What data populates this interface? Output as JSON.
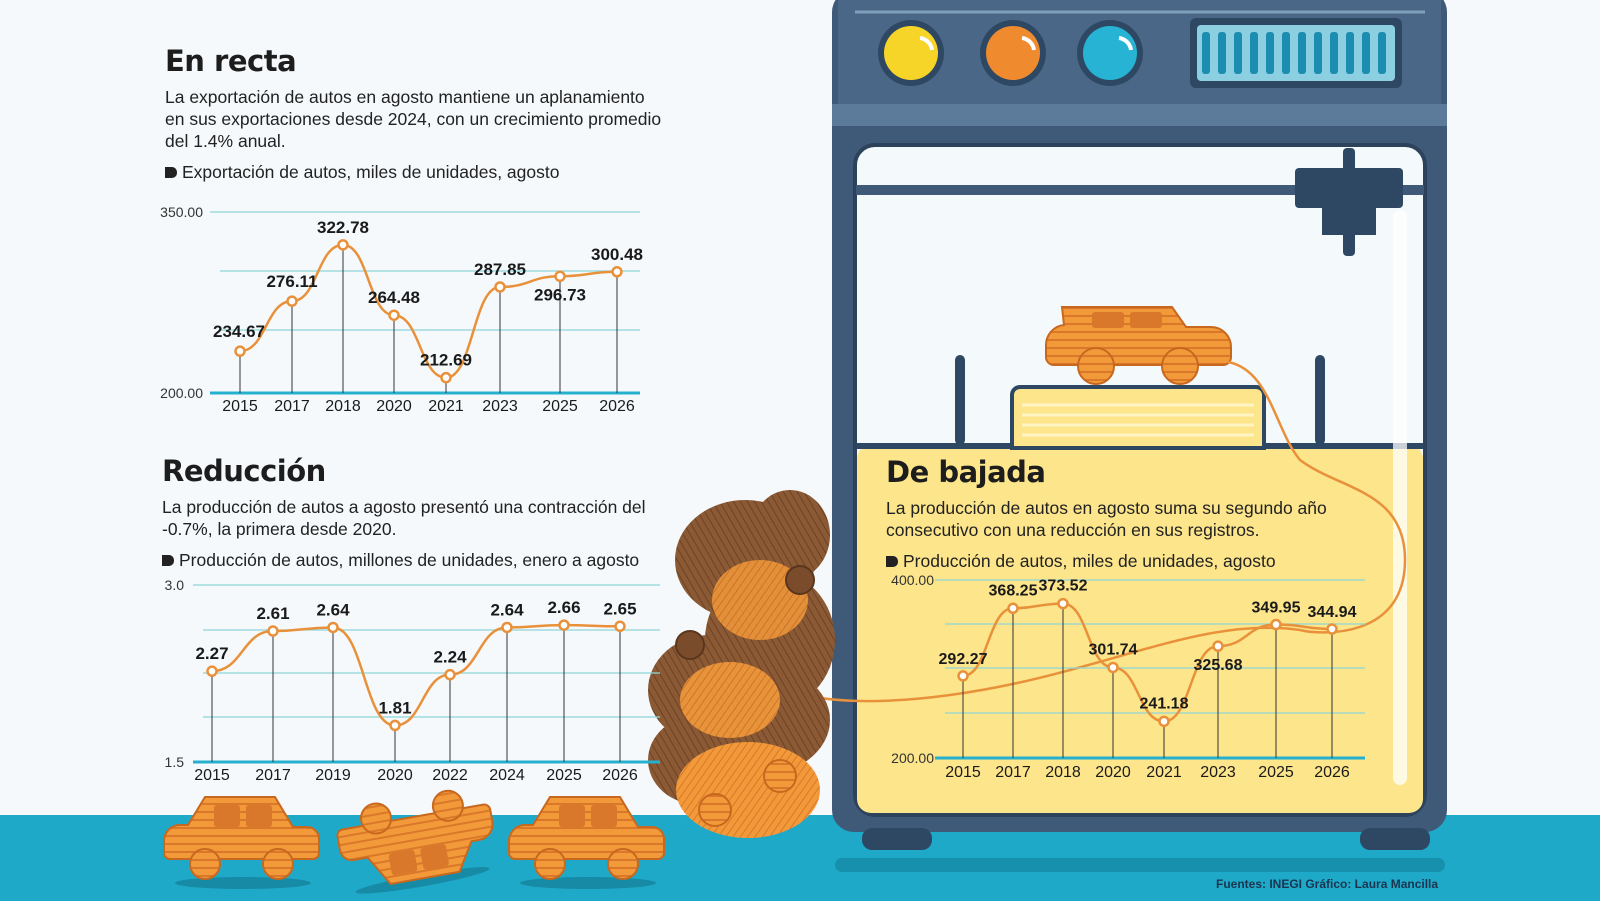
{
  "colors": {
    "line": "#e9913a",
    "axis": "#25b0cf",
    "grid": "#8fd6d8",
    "floor": "#1fa9c8",
    "machine": "#3e5a78",
    "panel_yellow": "#fce58a"
  },
  "credits": "Fuentes: INEGI  Gráfico: Laura Mancilla",
  "chart_data": [
    {
      "type": "line",
      "title": "En recta",
      "description": "La exportación de autos en agosto mantiene un aplanamiento en sus exportaciones desde 2024, con un crecimiento promedio del 1.4% anual.",
      "ylabel": "Exportación de autos, miles de unidades, agosto",
      "ylim": [
        200,
        350
      ],
      "yticks": [
        "350.00",
        "200.00"
      ],
      "x": [
        "2015",
        "2017",
        "2018",
        "2020",
        "2021",
        "2023",
        "2025",
        "2026"
      ],
      "values": [
        234.67,
        276.11,
        322.78,
        264.48,
        212.69,
        287.85,
        296.73,
        300.48
      ],
      "labels": [
        "234.67",
        "276.11",
        "322.78",
        "264.48",
        "212.69",
        "287.85",
        "296.73",
        "300.48"
      ],
      "grid": true
    },
    {
      "type": "line",
      "title": "Reducción",
      "description": "La producción de autos a agosto presentó una contracción del -0.7%, la primera desde 2020.",
      "ylabel": "Producción de autos, millones de unidades, enero a agosto",
      "ylim": [
        1.5,
        3.0
      ],
      "yticks": [
        "3.0",
        "1.5"
      ],
      "x": [
        "2015",
        "2017",
        "2019",
        "2020",
        "2022",
        "2024",
        "2025",
        "2026"
      ],
      "values": [
        2.27,
        2.61,
        2.64,
        1.81,
        2.24,
        2.64,
        2.66,
        2.65
      ],
      "labels": [
        "2.27",
        "2.61",
        "2.64",
        "1.81",
        "2.24",
        "2.64",
        "2.66",
        "2.65"
      ],
      "grid": true
    },
    {
      "type": "line",
      "title": "De bajada",
      "description": "La producción de autos en agosto suma su segundo año consecutivo con una reducción en sus registros.",
      "ylabel": "Producción de autos, miles de unidades, agosto",
      "ylim": [
        200,
        400
      ],
      "yticks": [
        "400.00",
        "200.00"
      ],
      "x": [
        "2015",
        "2017",
        "2018",
        "2020",
        "2021",
        "2023",
        "2025",
        "2026"
      ],
      "values": [
        292.27,
        368.25,
        373.52,
        301.74,
        241.18,
        325.68,
        349.95,
        344.94
      ],
      "labels": [
        "292.27",
        "368.25",
        "373.52",
        "301.74",
        "241.18",
        "325.68",
        "349.95",
        "344.94"
      ],
      "grid": true
    }
  ]
}
